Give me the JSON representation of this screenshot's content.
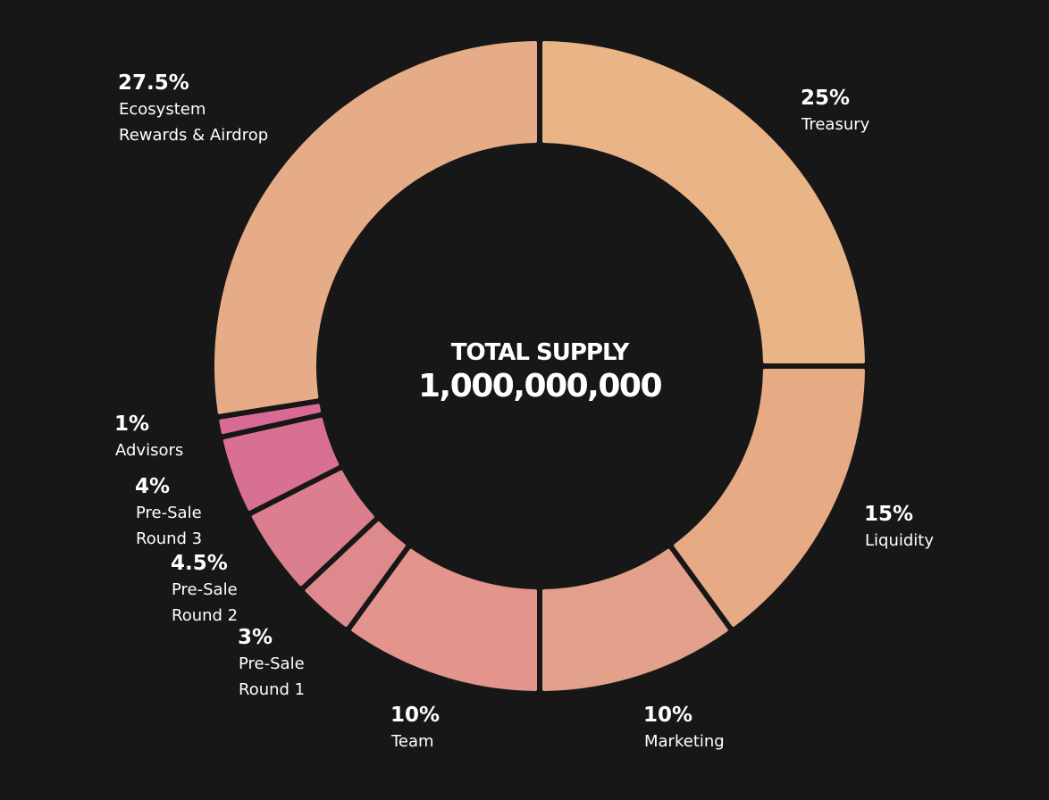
{
  "chart_data": {
    "type": "pie",
    "center": {
      "title": "TOTAL SUPPLY",
      "value": "1,000,000,000"
    },
    "slices": [
      {
        "percent_label": "25%",
        "value": 25,
        "label_lines": [
          "Treasury"
        ],
        "color": "#E9B587"
      },
      {
        "percent_label": "15%",
        "value": 15,
        "label_lines": [
          "Liquidity"
        ],
        "color": "#E6AA85"
      },
      {
        "percent_label": "10%",
        "value": 10,
        "label_lines": [
          "Marketing"
        ],
        "color": "#E3A08A"
      },
      {
        "percent_label": "10%",
        "value": 10,
        "label_lines": [
          "Team"
        ],
        "color": "#E2948D"
      },
      {
        "percent_label": "3%",
        "value": 3,
        "label_lines": [
          "Pre-Sale",
          "Round 1"
        ],
        "color": "#DE8A8D"
      },
      {
        "percent_label": "4.5%",
        "value": 4.5,
        "label_lines": [
          "Pre-Sale",
          "Round 2"
        ],
        "color": "#DB7E8E"
      },
      {
        "percent_label": "4%",
        "value": 4,
        "label_lines": [
          "Pre-Sale",
          "Round 3"
        ],
        "color": "#D87092"
      },
      {
        "percent_label": "1%",
        "value": 1,
        "label_lines": [
          "Advisors"
        ],
        "color": "#D96A95"
      },
      {
        "percent_label": "27.5%",
        "value": 27.5,
        "label_lines": [
          "Ecosystem",
          "Rewards & Airdrop"
        ],
        "color": "#E6AB87"
      }
    ],
    "background": "#171717",
    "legend": "none"
  }
}
